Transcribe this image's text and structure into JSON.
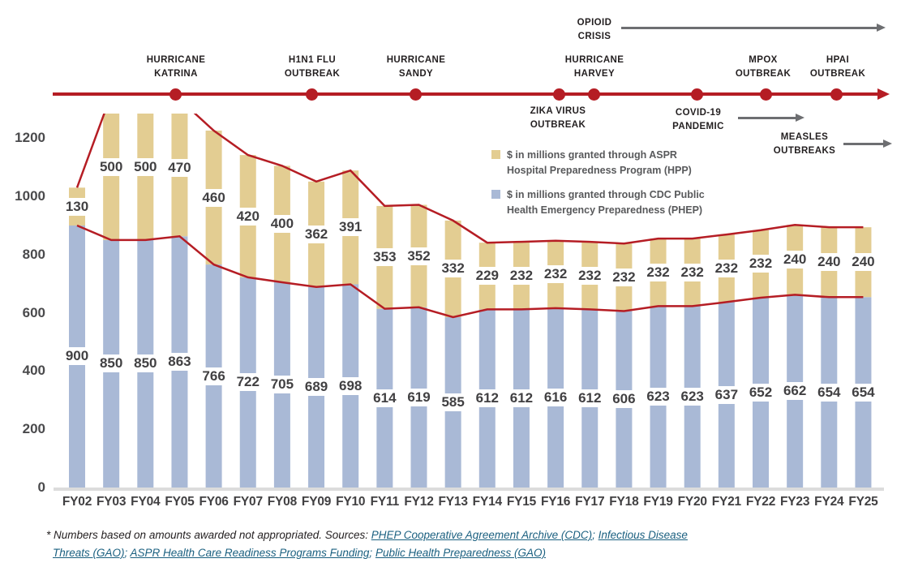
{
  "colors": {
    "red_line": "#B51D24",
    "hpp_tan": "#E3CD92",
    "phep_blue": "#A9B9D6",
    "axis_gray": "#DCDCDC",
    "arrow_gray": "#6D6E71",
    "link_teal": "#1B6080",
    "value_text": "#414042",
    "legend_text": "#58595B"
  },
  "timeline": {
    "events": [
      {
        "lines": [
          "HURRICANE",
          "KATRINA"
        ]
      },
      {
        "lines": [
          "H1N1 FLU",
          "OUTBREAK"
        ]
      },
      {
        "lines": [
          "HURRICANE",
          "SANDY"
        ]
      },
      {
        "lines": [
          "ZIKA VIRUS",
          "OUTBREAK"
        ]
      },
      {
        "lines": [
          "HURRICANE",
          "HARVEY"
        ]
      },
      {
        "lines": [
          "OPIOID",
          "CRISIS"
        ]
      },
      {
        "lines": [
          "COVID-19",
          "PANDEMIC"
        ]
      },
      {
        "lines": [
          "MPOX",
          "OUTBREAK"
        ]
      },
      {
        "lines": [
          "MEASLES",
          "OUTBREAKS"
        ]
      },
      {
        "lines": [
          "HPAI",
          "OUTBREAK"
        ]
      }
    ]
  },
  "legend": {
    "items": [
      {
        "lines": [
          "$ in millions granted through ASPR",
          "Hospital Preparedness Program (HPP)"
        ],
        "color": "#E3CD92"
      },
      {
        "lines": [
          "$ in millions granted through CDC Public",
          "Health Emergency Preparedness (PHEP)"
        ],
        "color": "#A9B9D6"
      }
    ]
  },
  "chart_data": {
    "type": "bar",
    "stacked": true,
    "categories": [
      "FY02",
      "FY03",
      "FY04",
      "FY05",
      "FY06",
      "FY07",
      "FY08",
      "FY09",
      "FY10",
      "FY11",
      "FY12",
      "FY13",
      "FY14",
      "FY15",
      "FY16",
      "FY17",
      "FY18",
      "FY19",
      "FY20",
      "FY21",
      "FY22",
      "FY23",
      "FY24",
      "FY25"
    ],
    "series": [
      {
        "name": "$ in millions granted through CDC Public Health Emergency Preparedness (PHEP)",
        "color": "#A9B9D6",
        "values": [
          900,
          850,
          850,
          863,
          766,
          722,
          705,
          689,
          698,
          614,
          619,
          585,
          612,
          612,
          616,
          612,
          606,
          623,
          623,
          637,
          652,
          662,
          654,
          654
        ]
      },
      {
        "name": "$ in millions granted through ASPR Hospital Preparedness Program (HPP)",
        "color": "#E3CD92",
        "values": [
          130,
          500,
          500,
          470,
          460,
          420,
          400,
          362,
          391,
          353,
          352,
          332,
          229,
          232,
          232,
          232,
          232,
          232,
          232,
          232,
          232,
          240,
          240,
          240
        ]
      }
    ],
    "yticks": [
      0,
      200,
      400,
      600,
      800,
      1000,
      1200
    ],
    "ylim": [
      0,
      1285
    ],
    "grid": false,
    "notes": "Dark red overlay lines trace the top of the PHEP segments and the top of the stacked totals; FY03-FY05 totals (1350, 1350, 1333) are clipped at the top of the plot area.",
    "xlabel": "",
    "ylabel": ""
  },
  "footnote": {
    "prefix": "* Numbers based on amounts awarded not appropriated. Sources: ",
    "link1": "PHEP Cooperative Agreement Archive (CDC)",
    "sep1": "; ",
    "link2a": "Infectious Disease",
    "link2b": "Threats (GAO)",
    "sep2": "; ",
    "link3": "ASPR Health Care Readiness Programs Funding",
    "sep3": "; ",
    "link4": "Public Health Preparedness (GAO)"
  }
}
